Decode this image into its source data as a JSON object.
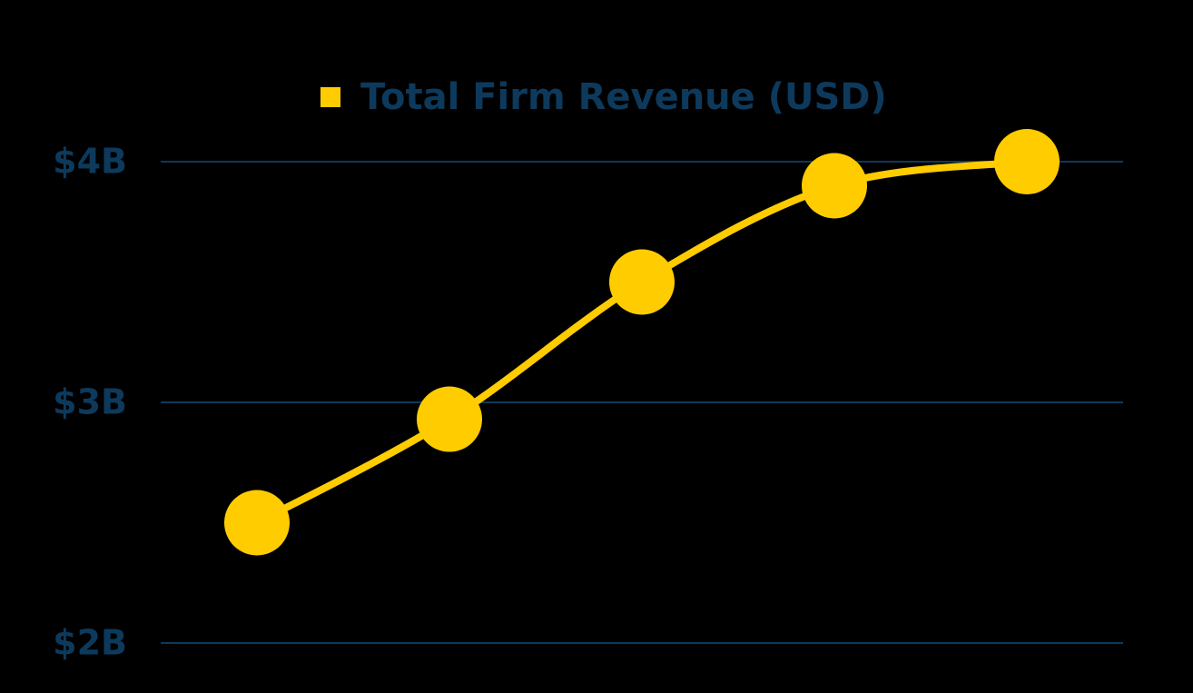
{
  "chart_data": {
    "type": "line",
    "categories": [
      null,
      null,
      null,
      null,
      null
    ],
    "series": [
      {
        "name": "Total Firm Revenue (USD)",
        "color": "#ffcc00",
        "values": [
          2500000000,
          2930000000,
          3500000000,
          3900000000,
          4000000000
        ]
      }
    ],
    "ylim": [
      2000000000,
      4000000000
    ],
    "yticks": [
      {
        "value": 2000000000,
        "label": "$2B"
      },
      {
        "value": 3000000000,
        "label": "$3B"
      },
      {
        "value": 4000000000,
        "label": "$4B"
      }
    ],
    "grid": true,
    "legend": "top",
    "smooth": true
  }
}
